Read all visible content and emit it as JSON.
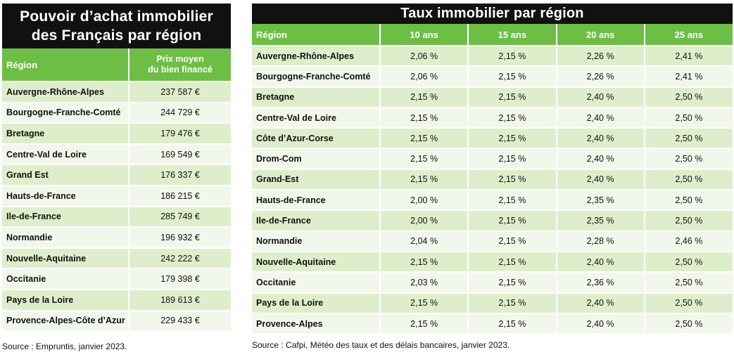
{
  "left": {
    "title_line1": "Pouvoir d’achat immobilier",
    "title_line2": "des Français par région",
    "col_region": "Région",
    "col_price_line1": "Prix moyen",
    "col_price_line2": "du bien financé",
    "rows": [
      {
        "region": "Auvergne-Rhône-Alpes",
        "price": "237 587 €"
      },
      {
        "region": "Bourgogne-Franche-Comté",
        "price": "244 729 €"
      },
      {
        "region": "Bretagne",
        "price": "179 476 €"
      },
      {
        "region": "Centre-Val de Loire",
        "price": "169 549 €"
      },
      {
        "region": "Grand Est",
        "price": "176 337 €"
      },
      {
        "region": "Hauts-de-France",
        "price": "186 215 €"
      },
      {
        "region": "Ile-de-France",
        "price": "285 749 €"
      },
      {
        "region": "Normandie",
        "price": "196 932 €"
      },
      {
        "region": "Nouvelle-Aquitaine",
        "price": "242 222 €"
      },
      {
        "region": "Occitanie",
        "price": "179 398 €"
      },
      {
        "region": "Pays de la Loire",
        "price": "189 613 €"
      },
      {
        "region": "Provence-Alpes-Côte d’Azur",
        "price": "229 433 €"
      }
    ],
    "source": "Source : Empruntis, janvier 2023."
  },
  "right": {
    "title": "Taux immobilier par région",
    "col_region": "Région",
    "cols": [
      "10 ans",
      "15 ans",
      "20 ans",
      "25 ans"
    ],
    "rows": [
      {
        "region": "Auvergne-Rhône-Alpes",
        "rates": [
          "2,06 %",
          "2,15 %",
          "2,26 %",
          "2,41 %"
        ]
      },
      {
        "region": "Bourgogne-Franche-Comté",
        "rates": [
          "2,06 %",
          "2,15 %",
          "2,26 %",
          "2,41 %"
        ]
      },
      {
        "region": "Bretagne",
        "rates": [
          "2,15 %",
          "2,15 %",
          "2,40 %",
          "2,50 %"
        ]
      },
      {
        "region": "Centre-Val de Loire",
        "rates": [
          "2,15 %",
          "2,15 %",
          "2,40 %",
          "2,50 %"
        ]
      },
      {
        "region": "Côte d’Azur-Corse",
        "rates": [
          "2,15 %",
          "2,15 %",
          "2,40 %",
          "2,50 %"
        ]
      },
      {
        "region": "Drom-Com",
        "rates": [
          "2,15 %",
          "2,15 %",
          "2,40 %",
          "2,50 %"
        ]
      },
      {
        "region": "Grand-Est",
        "rates": [
          "2,15 %",
          "2,15 %",
          "2,40 %",
          "2,50 %"
        ]
      },
      {
        "region": "Hauts-de-France",
        "rates": [
          "2,00 %",
          "2,15 %",
          "2,35 %",
          "2,50 %"
        ]
      },
      {
        "region": "Ile-de-France",
        "rates": [
          "2,00 %",
          "2,15 %",
          "2,35 %",
          "2,50 %"
        ]
      },
      {
        "region": "Normandie",
        "rates": [
          "2,04 %",
          "2,15 %",
          "2,28 %",
          "2,46 %"
        ]
      },
      {
        "region": "Nouvelle-Aquitaine",
        "rates": [
          "2,15 %",
          "2,15 %",
          "2,40 %",
          "2,50 %"
        ]
      },
      {
        "region": "Occitanie",
        "rates": [
          "2,03 %",
          "2,15 %",
          "2,36 %",
          "2,50 %"
        ]
      },
      {
        "region": "Pays de la Loire",
        "rates": [
          "2,15 %",
          "2,15 %",
          "2,40 %",
          "2,50 %"
        ]
      },
      {
        "region": "Provence-Alpes",
        "rates": [
          "2,15 %",
          "2,15 %",
          "2,40 %",
          "2,50 %"
        ]
      }
    ],
    "source": "Source : Cafpi, Météo des taux et des délais bancaires, janvier 2023."
  },
  "colors": {
    "header_green": "#6dbe45",
    "row_light": "#f2f7eb",
    "row_mid": "#deeecb",
    "title_bg": "#111111"
  }
}
